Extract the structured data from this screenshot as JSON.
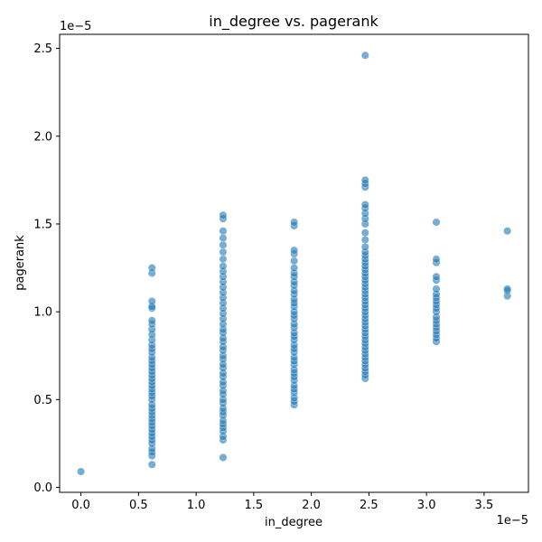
{
  "chart_data": {
    "type": "scatter",
    "title": "in_degree vs. pagerank",
    "xlabel": "in_degree",
    "ylabel": "pagerank",
    "x_offset_text": "1e−5",
    "y_offset_text": "1e−5",
    "xlim": [
      -0.185,
      3.885
    ],
    "ylim": [
      -0.028,
      2.58
    ],
    "x_ticks": [
      0.0,
      0.5,
      1.0,
      1.5,
      2.0,
      2.5,
      3.0,
      3.5
    ],
    "x_tick_labels": [
      "0.0",
      "0.5",
      "1.0",
      "1.5",
      "2.0",
      "2.5",
      "3.0",
      "3.5"
    ],
    "y_ticks": [
      0.0,
      0.5,
      1.0,
      1.5,
      2.0,
      2.5
    ],
    "y_tick_labels": [
      "0.0",
      "0.5",
      "1.0",
      "1.5",
      "2.0",
      "2.5"
    ],
    "grid": false,
    "marker_color": "#1f77b4",
    "points": [
      {
        "x": 0.0,
        "y": 0.09
      },
      {
        "x": 0.617,
        "y": 0.13
      },
      {
        "x": 0.617,
        "y": 0.18
      },
      {
        "x": 0.617,
        "y": 0.2
      },
      {
        "x": 0.617,
        "y": 0.22
      },
      {
        "x": 0.617,
        "y": 0.25
      },
      {
        "x": 0.617,
        "y": 0.27
      },
      {
        "x": 0.617,
        "y": 0.29
      },
      {
        "x": 0.617,
        "y": 0.31
      },
      {
        "x": 0.617,
        "y": 0.33
      },
      {
        "x": 0.617,
        "y": 0.35
      },
      {
        "x": 0.617,
        "y": 0.37
      },
      {
        "x": 0.617,
        "y": 0.39
      },
      {
        "x": 0.617,
        "y": 0.41
      },
      {
        "x": 0.617,
        "y": 0.43
      },
      {
        "x": 0.617,
        "y": 0.45
      },
      {
        "x": 0.617,
        "y": 0.47
      },
      {
        "x": 0.617,
        "y": 0.5
      },
      {
        "x": 0.617,
        "y": 0.52
      },
      {
        "x": 0.617,
        "y": 0.54
      },
      {
        "x": 0.617,
        "y": 0.56
      },
      {
        "x": 0.617,
        "y": 0.58
      },
      {
        "x": 0.617,
        "y": 0.6
      },
      {
        "x": 0.617,
        "y": 0.62
      },
      {
        "x": 0.617,
        "y": 0.64
      },
      {
        "x": 0.617,
        "y": 0.66
      },
      {
        "x": 0.617,
        "y": 0.68
      },
      {
        "x": 0.617,
        "y": 0.7
      },
      {
        "x": 0.617,
        "y": 0.72
      },
      {
        "x": 0.617,
        "y": 0.74
      },
      {
        "x": 0.617,
        "y": 0.77
      },
      {
        "x": 0.617,
        "y": 0.79
      },
      {
        "x": 0.617,
        "y": 0.81
      },
      {
        "x": 0.617,
        "y": 0.84
      },
      {
        "x": 0.617,
        "y": 0.87
      },
      {
        "x": 0.617,
        "y": 0.9
      },
      {
        "x": 0.617,
        "y": 0.93
      },
      {
        "x": 0.617,
        "y": 0.95
      },
      {
        "x": 0.617,
        "y": 1.02
      },
      {
        "x": 0.617,
        "y": 1.03
      },
      {
        "x": 0.617,
        "y": 1.06
      },
      {
        "x": 0.617,
        "y": 1.22
      },
      {
        "x": 0.617,
        "y": 1.25
      },
      {
        "x": 1.234,
        "y": 0.17
      },
      {
        "x": 1.234,
        "y": 0.27
      },
      {
        "x": 1.234,
        "y": 0.29
      },
      {
        "x": 1.234,
        "y": 0.32
      },
      {
        "x": 1.234,
        "y": 0.34
      },
      {
        "x": 1.234,
        "y": 0.36
      },
      {
        "x": 1.234,
        "y": 0.38
      },
      {
        "x": 1.234,
        "y": 0.41
      },
      {
        "x": 1.234,
        "y": 0.43
      },
      {
        "x": 1.234,
        "y": 0.45
      },
      {
        "x": 1.234,
        "y": 0.48
      },
      {
        "x": 1.234,
        "y": 0.5
      },
      {
        "x": 1.234,
        "y": 0.53
      },
      {
        "x": 1.234,
        "y": 0.55
      },
      {
        "x": 1.234,
        "y": 0.58
      },
      {
        "x": 1.234,
        "y": 0.6
      },
      {
        "x": 1.234,
        "y": 0.63
      },
      {
        "x": 1.234,
        "y": 0.65
      },
      {
        "x": 1.234,
        "y": 0.68
      },
      {
        "x": 1.234,
        "y": 0.7
      },
      {
        "x": 1.234,
        "y": 0.73
      },
      {
        "x": 1.234,
        "y": 0.75
      },
      {
        "x": 1.234,
        "y": 0.78
      },
      {
        "x": 1.234,
        "y": 0.8
      },
      {
        "x": 1.234,
        "y": 0.83
      },
      {
        "x": 1.234,
        "y": 0.85
      },
      {
        "x": 1.234,
        "y": 0.88
      },
      {
        "x": 1.234,
        "y": 0.9
      },
      {
        "x": 1.234,
        "y": 0.93
      },
      {
        "x": 1.234,
        "y": 0.96
      },
      {
        "x": 1.234,
        "y": 0.99
      },
      {
        "x": 1.234,
        "y": 1.02
      },
      {
        "x": 1.234,
        "y": 1.05
      },
      {
        "x": 1.234,
        "y": 1.08
      },
      {
        "x": 1.234,
        "y": 1.11
      },
      {
        "x": 1.234,
        "y": 1.14
      },
      {
        "x": 1.234,
        "y": 1.17
      },
      {
        "x": 1.234,
        "y": 1.2
      },
      {
        "x": 1.234,
        "y": 1.23
      },
      {
        "x": 1.234,
        "y": 1.26
      },
      {
        "x": 1.234,
        "y": 1.3
      },
      {
        "x": 1.234,
        "y": 1.34
      },
      {
        "x": 1.234,
        "y": 1.38
      },
      {
        "x": 1.234,
        "y": 1.42
      },
      {
        "x": 1.234,
        "y": 1.46
      },
      {
        "x": 1.234,
        "y": 1.53
      },
      {
        "x": 1.234,
        "y": 1.55
      },
      {
        "x": 1.851,
        "y": 0.47
      },
      {
        "x": 1.851,
        "y": 0.49
      },
      {
        "x": 1.851,
        "y": 0.51
      },
      {
        "x": 1.851,
        "y": 0.54
      },
      {
        "x": 1.851,
        "y": 0.56
      },
      {
        "x": 1.851,
        "y": 0.58
      },
      {
        "x": 1.851,
        "y": 0.61
      },
      {
        "x": 1.851,
        "y": 0.63
      },
      {
        "x": 1.851,
        "y": 0.65
      },
      {
        "x": 1.851,
        "y": 0.67
      },
      {
        "x": 1.851,
        "y": 0.7
      },
      {
        "x": 1.851,
        "y": 0.72
      },
      {
        "x": 1.851,
        "y": 0.74
      },
      {
        "x": 1.851,
        "y": 0.77
      },
      {
        "x": 1.851,
        "y": 0.79
      },
      {
        "x": 1.851,
        "y": 0.81
      },
      {
        "x": 1.851,
        "y": 0.84
      },
      {
        "x": 1.851,
        "y": 0.86
      },
      {
        "x": 1.851,
        "y": 0.88
      },
      {
        "x": 1.851,
        "y": 0.91
      },
      {
        "x": 1.851,
        "y": 0.93
      },
      {
        "x": 1.851,
        "y": 0.96
      },
      {
        "x": 1.851,
        "y": 0.98
      },
      {
        "x": 1.851,
        "y": 1.0
      },
      {
        "x": 1.851,
        "y": 1.03
      },
      {
        "x": 1.851,
        "y": 1.05
      },
      {
        "x": 1.851,
        "y": 1.07
      },
      {
        "x": 1.851,
        "y": 1.1
      },
      {
        "x": 1.851,
        "y": 1.12
      },
      {
        "x": 1.851,
        "y": 1.15
      },
      {
        "x": 1.851,
        "y": 1.17
      },
      {
        "x": 1.851,
        "y": 1.2
      },
      {
        "x": 1.851,
        "y": 1.22
      },
      {
        "x": 1.851,
        "y": 1.25
      },
      {
        "x": 1.851,
        "y": 1.29
      },
      {
        "x": 1.851,
        "y": 1.33
      },
      {
        "x": 1.851,
        "y": 1.35
      },
      {
        "x": 1.851,
        "y": 1.49
      },
      {
        "x": 1.851,
        "y": 1.51
      },
      {
        "x": 2.468,
        "y": 0.62
      },
      {
        "x": 2.468,
        "y": 0.64
      },
      {
        "x": 2.468,
        "y": 0.66
      },
      {
        "x": 2.468,
        "y": 0.68
      },
      {
        "x": 2.468,
        "y": 0.7
      },
      {
        "x": 2.468,
        "y": 0.72
      },
      {
        "x": 2.468,
        "y": 0.74
      },
      {
        "x": 2.468,
        "y": 0.76
      },
      {
        "x": 2.468,
        "y": 0.78
      },
      {
        "x": 2.468,
        "y": 0.8
      },
      {
        "x": 2.468,
        "y": 0.82
      },
      {
        "x": 2.468,
        "y": 0.84
      },
      {
        "x": 2.468,
        "y": 0.86
      },
      {
        "x": 2.468,
        "y": 0.88
      },
      {
        "x": 2.468,
        "y": 0.9
      },
      {
        "x": 2.468,
        "y": 0.92
      },
      {
        "x": 2.468,
        "y": 0.94
      },
      {
        "x": 2.468,
        "y": 0.96
      },
      {
        "x": 2.468,
        "y": 0.98
      },
      {
        "x": 2.468,
        "y": 1.0
      },
      {
        "x": 2.468,
        "y": 1.02
      },
      {
        "x": 2.468,
        "y": 1.04
      },
      {
        "x": 2.468,
        "y": 1.06
      },
      {
        "x": 2.468,
        "y": 1.08
      },
      {
        "x": 2.468,
        "y": 1.1
      },
      {
        "x": 2.468,
        "y": 1.12
      },
      {
        "x": 2.468,
        "y": 1.14
      },
      {
        "x": 2.468,
        "y": 1.16
      },
      {
        "x": 2.468,
        "y": 1.18
      },
      {
        "x": 2.468,
        "y": 1.2
      },
      {
        "x": 2.468,
        "y": 1.22
      },
      {
        "x": 2.468,
        "y": 1.24
      },
      {
        "x": 2.468,
        "y": 1.26
      },
      {
        "x": 2.468,
        "y": 1.28
      },
      {
        "x": 2.468,
        "y": 1.3
      },
      {
        "x": 2.468,
        "y": 1.32
      },
      {
        "x": 2.468,
        "y": 1.34
      },
      {
        "x": 2.468,
        "y": 1.37
      },
      {
        "x": 2.468,
        "y": 1.41
      },
      {
        "x": 2.468,
        "y": 1.45
      },
      {
        "x": 2.468,
        "y": 1.5
      },
      {
        "x": 2.468,
        "y": 1.53
      },
      {
        "x": 2.468,
        "y": 1.56
      },
      {
        "x": 2.468,
        "y": 1.59
      },
      {
        "x": 2.468,
        "y": 1.61
      },
      {
        "x": 2.468,
        "y": 1.71
      },
      {
        "x": 2.468,
        "y": 1.73
      },
      {
        "x": 2.468,
        "y": 1.75
      },
      {
        "x": 2.468,
        "y": 2.46
      },
      {
        "x": 3.085,
        "y": 0.83
      },
      {
        "x": 3.085,
        "y": 0.85
      },
      {
        "x": 3.085,
        "y": 0.87
      },
      {
        "x": 3.085,
        "y": 0.89
      },
      {
        "x": 3.085,
        "y": 0.91
      },
      {
        "x": 3.085,
        "y": 0.93
      },
      {
        "x": 3.085,
        "y": 0.95
      },
      {
        "x": 3.085,
        "y": 0.97
      },
      {
        "x": 3.085,
        "y": 1.0
      },
      {
        "x": 3.085,
        "y": 1.02
      },
      {
        "x": 3.085,
        "y": 1.04
      },
      {
        "x": 3.085,
        "y": 1.06
      },
      {
        "x": 3.085,
        "y": 1.08
      },
      {
        "x": 3.085,
        "y": 1.1
      },
      {
        "x": 3.085,
        "y": 1.13
      },
      {
        "x": 3.085,
        "y": 1.18
      },
      {
        "x": 3.085,
        "y": 1.2
      },
      {
        "x": 3.085,
        "y": 1.28
      },
      {
        "x": 3.085,
        "y": 1.3
      },
      {
        "x": 3.085,
        "y": 1.51
      },
      {
        "x": 3.702,
        "y": 1.09
      },
      {
        "x": 3.702,
        "y": 1.12
      },
      {
        "x": 3.702,
        "y": 1.13
      },
      {
        "x": 3.702,
        "y": 1.46
      }
    ]
  }
}
